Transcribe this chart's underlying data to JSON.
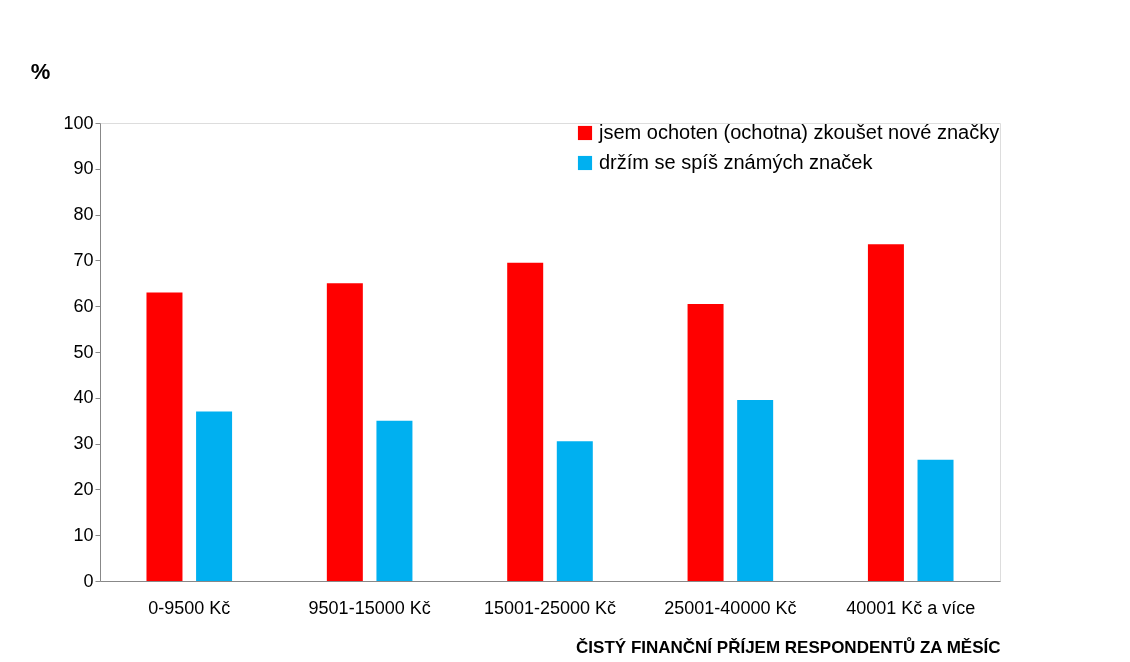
{
  "chart_data": {
    "type": "bar",
    "categories": [
      "0-9500 Kč",
      "9501-15000 Kč",
      "15001-25000 Kč",
      "25001-40000 Kč",
      "40001 Kč a více"
    ],
    "series": [
      {
        "name": "jsem ochoten (ochotna) zkoušet nové značky",
        "color": "#ff0000",
        "values": [
          63,
          65,
          69.5,
          60.5,
          73.5
        ]
      },
      {
        "name": "držím se spíš známých značek",
        "color": "#00b0f0",
        "values": [
          37,
          35,
          30.5,
          39.5,
          26.5
        ]
      }
    ],
    "ylabel": "%",
    "xlabel": "ČISTÝ FINANČNÍ PŘÍJEM RESPONDENTŮ ZA MĚSÍC",
    "ylim": [
      0,
      100
    ],
    "yticks": [
      0,
      10,
      20,
      30,
      40,
      50,
      60,
      70,
      80,
      90,
      100
    ],
    "grid": false,
    "legend": "top right"
  }
}
